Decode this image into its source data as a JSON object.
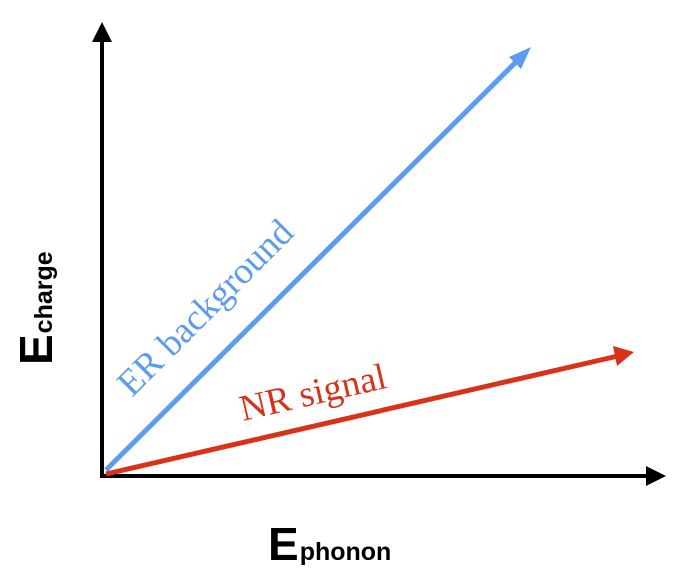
{
  "axes": {
    "x_label_main": "E",
    "x_label_sub": "phonon",
    "y_label_main": "E",
    "y_label_sub": "charge"
  },
  "arrows": [
    {
      "label": "ER background",
      "color": "#5b9bf0"
    },
    {
      "label": "NR signal",
      "color": "#d8321a"
    }
  ]
}
